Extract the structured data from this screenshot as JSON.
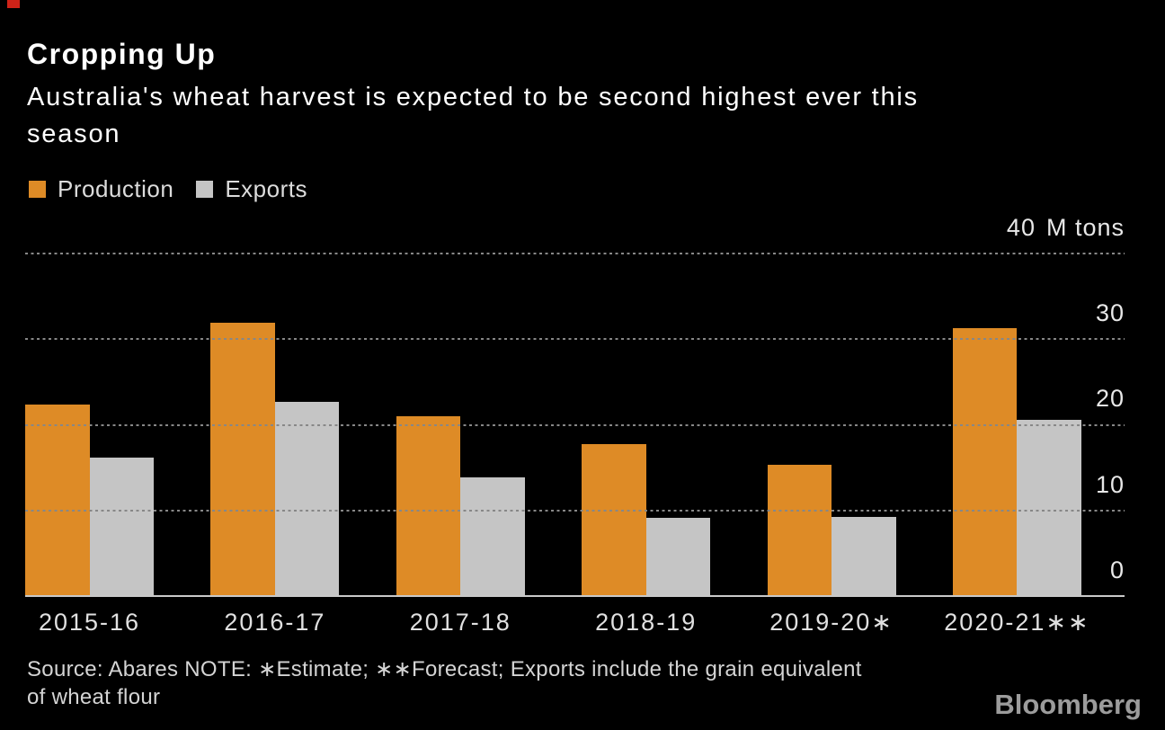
{
  "corner_marker_color": "#cf2318",
  "header": {
    "title": "Cropping Up",
    "subtitle_line1": "Australia's wheat harvest is expected to be second highest ever this",
    "subtitle_line2": "season"
  },
  "legend": {
    "items": [
      {
        "label": "Production",
        "color": "#de8b26"
      },
      {
        "label": "Exports",
        "color": "#c5c5c5"
      }
    ]
  },
  "chart_data": {
    "type": "bar",
    "title": "Cropping Up",
    "subtitle": "Australia's wheat harvest is expected to be second highest ever this season",
    "categories": [
      "2015-16",
      "2016-17",
      "2017-18",
      "2018-19",
      "2019-20∗",
      "2020-21∗∗"
    ],
    "series": [
      {
        "name": "Production",
        "color": "#de8b26",
        "values": [
          22.3,
          31.8,
          20.9,
          17.6,
          15.2,
          31.2
        ]
      },
      {
        "name": "Exports",
        "color": "#c5c5c5",
        "values": [
          16.1,
          22.6,
          13.8,
          9.0,
          9.1,
          20.5
        ]
      }
    ],
    "xlabel": "",
    "ylabel": "M tons",
    "ylim": [
      0,
      40
    ],
    "grid_values": [
      40,
      30,
      20,
      10
    ],
    "grid_style": "dotted",
    "y_ticks": [
      {
        "value": 40,
        "label": "40",
        "unit": "M tons"
      },
      {
        "value": 30,
        "label": "30"
      },
      {
        "value": 20,
        "label": "20"
      },
      {
        "value": 10,
        "label": "10"
      },
      {
        "value": 0,
        "label": "0"
      }
    ],
    "legend_position": "top-left",
    "axis_colors": {
      "baseline": "#c9c9c9",
      "gridline": "#878787",
      "tick_text": "#e8e8e8"
    }
  },
  "footer": {
    "source_line1": "Source: Abares NOTE: ∗Estimate; ∗∗Forecast; Exports include the grain equivalent",
    "source_line2": "of wheat flour",
    "brand": "Bloomberg"
  }
}
